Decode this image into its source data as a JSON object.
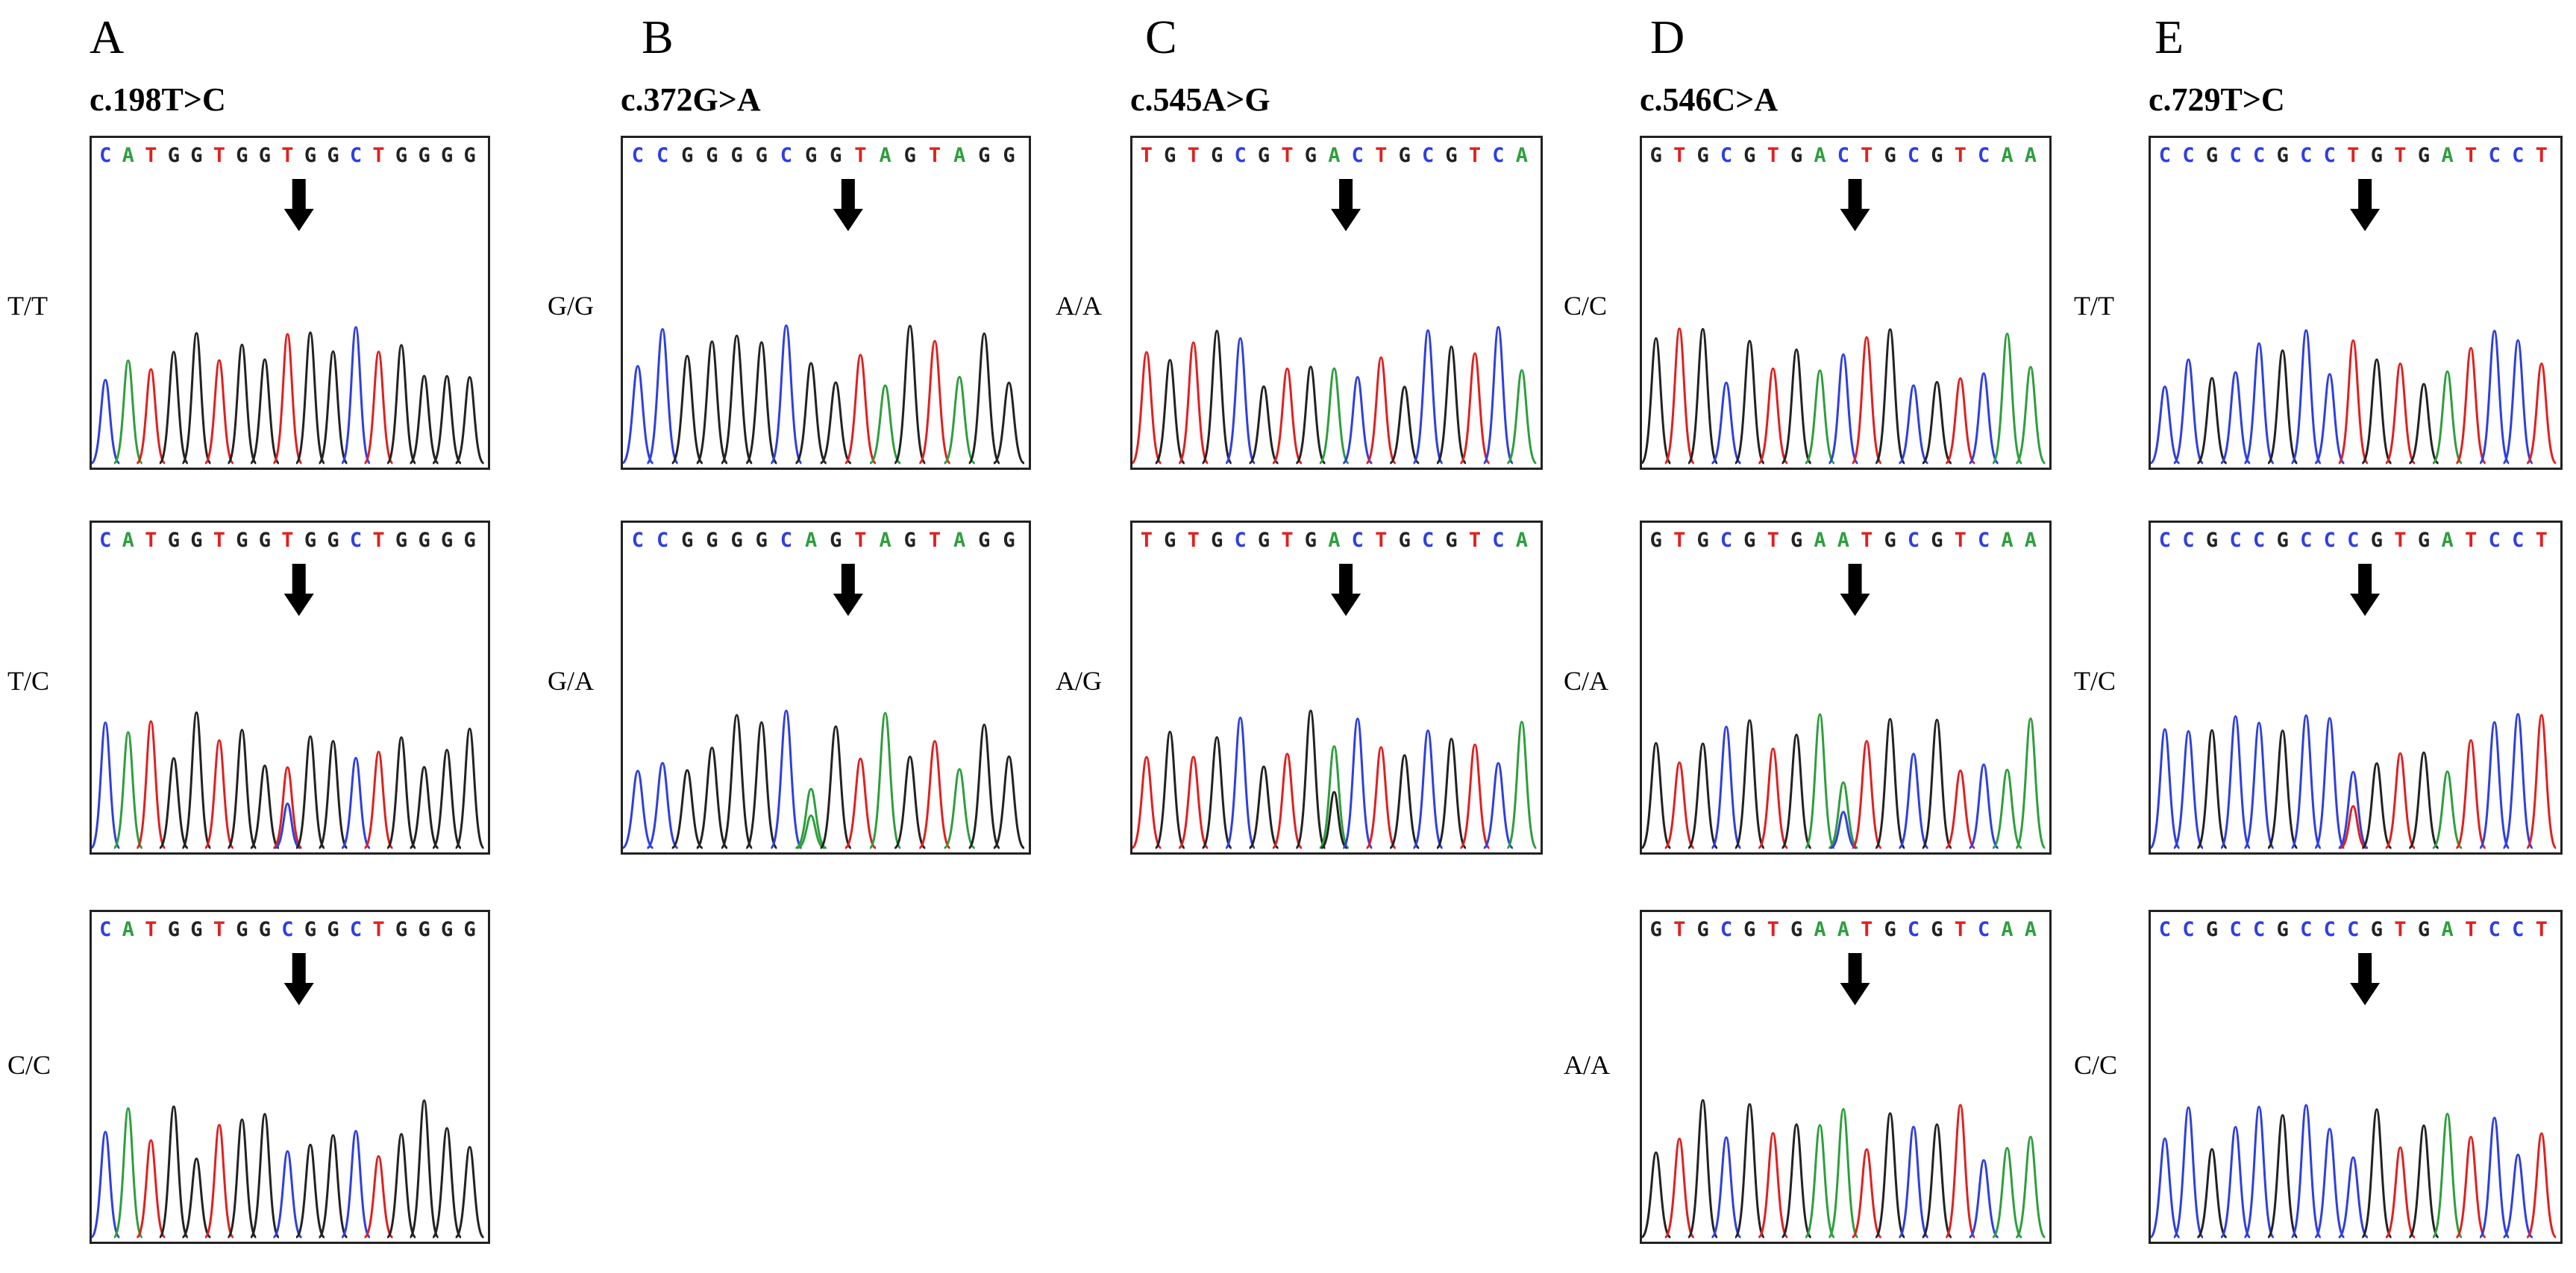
{
  "colors": {
    "A": "#2e9e3e",
    "C": "#2f3fe0",
    "G": "#222222",
    "T": "#e02020"
  },
  "columns": [
    {
      "letter": "A",
      "mutation": "c.198T>C",
      "panels": [
        {
          "genotype": "T/T",
          "sequence": "CATGGTGGTGGCTGGGG",
          "het_index": -1
        },
        {
          "genotype": "T/C",
          "sequence": "CATGGTGGTGGCTGGGG",
          "het_index": 8,
          "het_base": "C"
        },
        {
          "genotype": "C/C",
          "sequence": "CATGGTGGCGGCTGGGG",
          "het_index": -1
        }
      ]
    },
    {
      "letter": "B",
      "mutation": "c.372G>A",
      "panels": [
        {
          "genotype": "G/G",
          "sequence": "CCGGGGCGGTAGTAGG",
          "het_index": -1
        },
        {
          "genotype": "G/A",
          "sequence": "CCGGGGCAGTAGTAGG",
          "het_index": 7,
          "het_base": "A"
        }
      ]
    },
    {
      "letter": "C",
      "mutation": "c.545A>G",
      "panels": [
        {
          "genotype": "A/A",
          "sequence": "TGTGCGTGACTGCGTCA",
          "het_index": -1
        },
        {
          "genotype": "A/G",
          "sequence": "TGTGCGTGACTGCGTCA",
          "het_index": 8,
          "het_base": "G"
        }
      ]
    },
    {
      "letter": "D",
      "mutation": "c.546C>A",
      "panels": [
        {
          "genotype": "C/C",
          "sequence": "GTGCGTGACTGCGTCAA",
          "het_index": -1
        },
        {
          "genotype": "C/A",
          "sequence": "GTGCGTGAATGCGTCAA",
          "het_index": 8,
          "het_base": "C"
        },
        {
          "genotype": "A/A",
          "sequence": "GTGCGTGAATGCGTCAA",
          "het_index": -1
        }
      ]
    },
    {
      "letter": "E",
      "mutation": "c.729T>C",
      "panels": [
        {
          "genotype": "T/T",
          "sequence": "CCGCCGCCTGTGATCCT",
          "het_index": -1
        },
        {
          "genotype": "T/C",
          "sequence": "CCGCCGCCCGTGATCCT",
          "het_index": 8,
          "het_base": "T"
        },
        {
          "genotype": "C/C",
          "sequence": "CCGCCGCCCGTGATCCT",
          "het_index": -1
        }
      ]
    }
  ]
}
